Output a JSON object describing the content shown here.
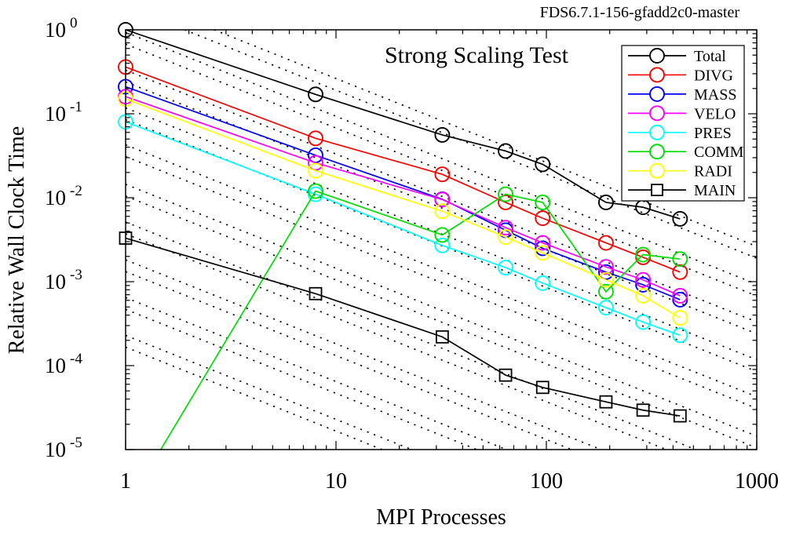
{
  "header": {
    "version_label": "FDS6.7.1-156-gfadd2c0-master"
  },
  "chart_data": {
    "type": "line",
    "title": "Strong Scaling Test",
    "xlabel": "MPI Processes",
    "ylabel": "Relative Wall Clock Time",
    "x_scale": "log",
    "y_scale": "log",
    "xlim": [
      1,
      1000
    ],
    "ylim": [
      1e-05,
      1
    ],
    "grid": false,
    "legend_position": "upper-right",
    "x_tick_labels": [
      "1",
      "10",
      "100",
      "1000"
    ],
    "x_ticks": [
      1,
      10,
      100,
      1000
    ],
    "y_tick_base": "10",
    "y_tick_exponents": [
      "0",
      "-1",
      "-2",
      "-3",
      "-4",
      "-5"
    ],
    "x": [
      1,
      8,
      32,
      64,
      96,
      192,
      288,
      432
    ],
    "series": [
      {
        "name": "Total",
        "color": "#000000",
        "marker": "circle",
        "values": [
          1.0,
          0.17,
          0.056,
          0.036,
          0.025,
          0.0088,
          0.0077,
          0.0056
        ]
      },
      {
        "name": "DIVG",
        "color": "#ff0000",
        "marker": "circle",
        "values": [
          0.36,
          0.051,
          0.019,
          0.0088,
          0.0057,
          0.0029,
          0.00195,
          0.0013
        ]
      },
      {
        "name": "MASS",
        "color": "#0000ff",
        "marker": "circle",
        "values": [
          0.21,
          0.032,
          0.0096,
          0.0041,
          0.0025,
          0.0013,
          0.00092,
          0.00061
        ]
      },
      {
        "name": "VELO",
        "color": "#ff00ff",
        "marker": "circle",
        "values": [
          0.16,
          0.026,
          0.0095,
          0.0044,
          0.0029,
          0.0015,
          0.00105,
          0.00068
        ]
      },
      {
        "name": "PRES",
        "color": "#00ffff",
        "marker": "circle",
        "values": [
          0.08,
          0.011,
          0.0027,
          0.00147,
          0.00096,
          0.00049,
          0.00033,
          0.00023
        ]
      },
      {
        "name": "COMM",
        "color": "#00dd00",
        "marker": "circle",
        "values": [
          2e-06,
          0.012,
          0.0036,
          0.011,
          0.0088,
          0.00076,
          0.0021,
          0.00186
        ]
      },
      {
        "name": "RADI",
        "color": "#ffff00",
        "marker": "circle",
        "values": [
          0.15,
          0.021,
          0.0069,
          0.0034,
          0.0022,
          0.00105,
          0.00068,
          0.00037
        ]
      },
      {
        "name": "MAIN",
        "color": "#000000",
        "marker": "square",
        "values": [
          0.0033,
          0.00072,
          0.00022,
          7.7e-05,
          5.5e-05,
          3.7e-05,
          2.95e-05,
          2.52e-05
        ]
      }
    ],
    "reference_lines": {
      "description": "ideal strong-scaling guide lines, slope -1 on log-log axes",
      "style": "dotted",
      "color": "#000000",
      "slope": -1,
      "intercepts_log10": [
        0.42,
        0.28,
        -0.03,
        -0.17,
        -0.48,
        -0.62,
        -0.93,
        -1.07,
        -1.37,
        -1.51,
        -1.84,
        -1.98,
        -2.29,
        -2.43,
        -2.74,
        -2.88,
        -3.19,
        -3.33,
        -3.64,
        -3.78
      ]
    }
  }
}
